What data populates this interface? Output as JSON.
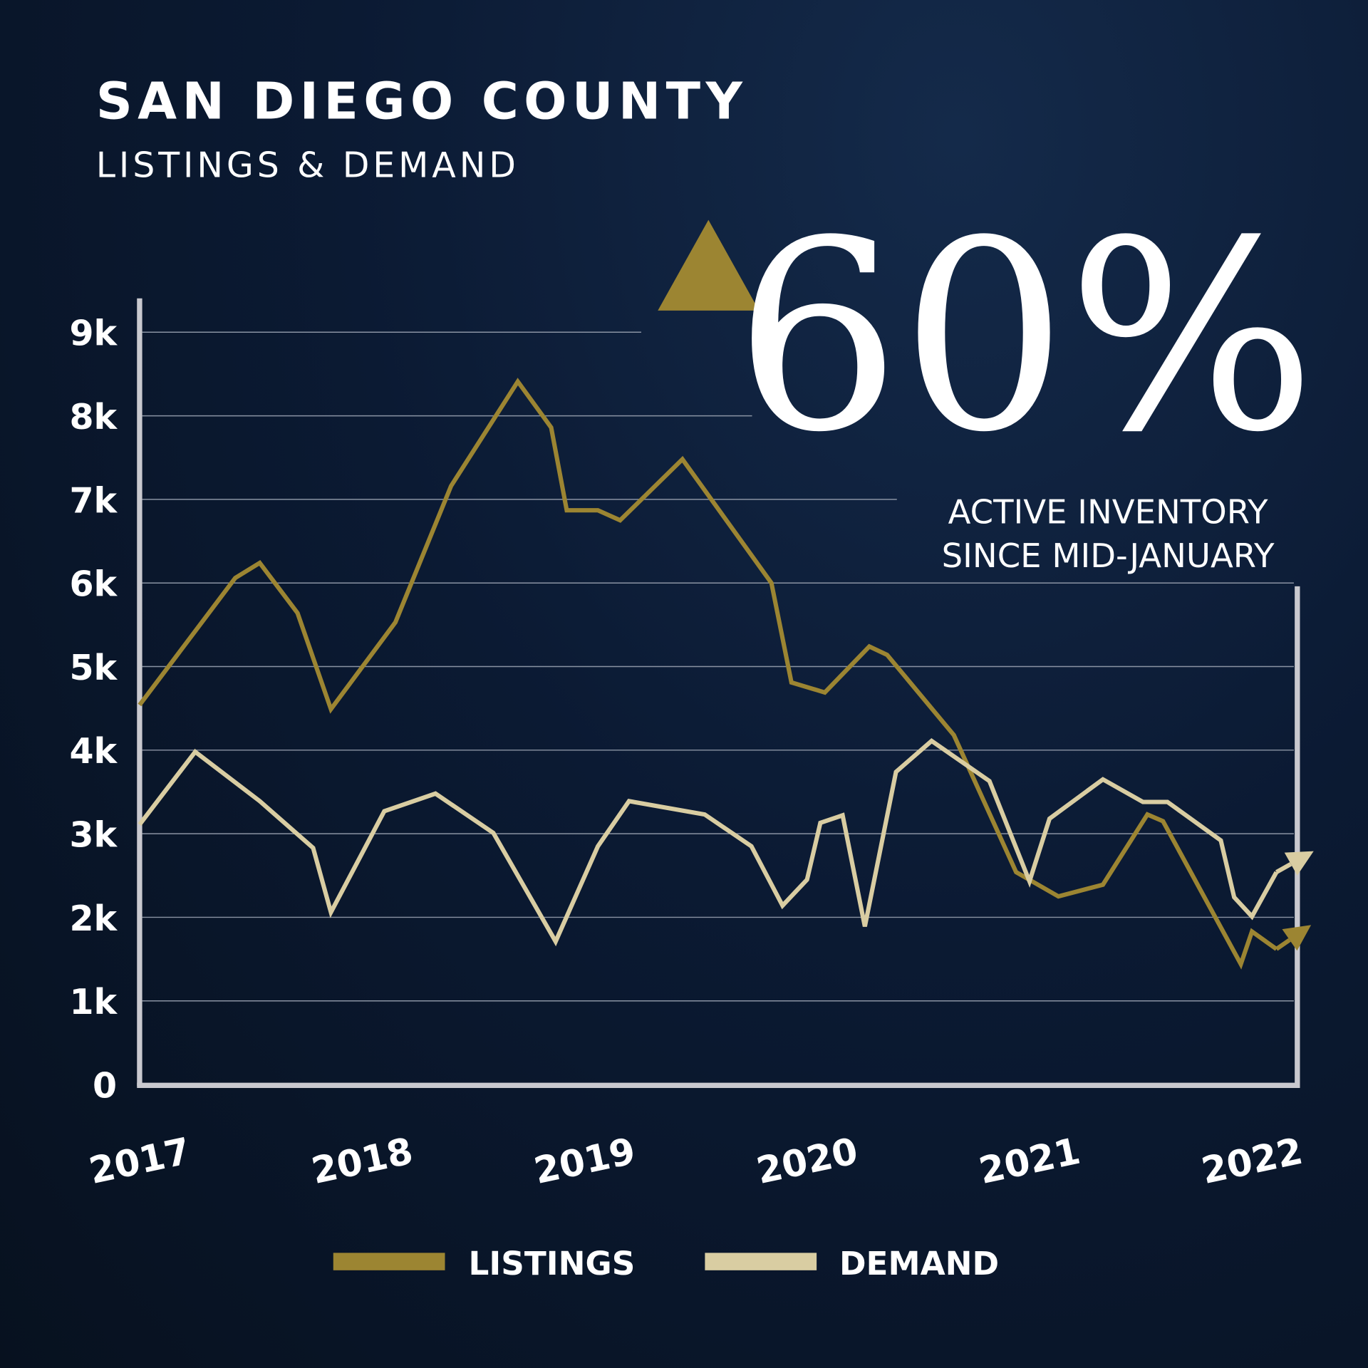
{
  "colors": {
    "listings": "#9c8532",
    "demand": "#d9cda2",
    "axis": "#c9c9cf",
    "grid": "#8a93a3",
    "background": "#0b1a33",
    "text": "#ffffff"
  },
  "chart_data": {
    "type": "line",
    "title": "SAN DIEGO COUNTY",
    "subtitle": "LISTINGS & DEMAND",
    "xlabel": "",
    "ylabel": "",
    "x_ticks": [
      "2017",
      "2018",
      "2019",
      "2020",
      "2021",
      "2022"
    ],
    "y_ticks": [
      "0",
      "1k",
      "2k",
      "3k",
      "4k",
      "5k",
      "6k",
      "7k",
      "8k",
      "9k"
    ],
    "ylim": [
      0,
      9000
    ],
    "xlim": [
      2017,
      2022.2
    ],
    "grid": true,
    "legend_position": "bottom",
    "series": [
      {
        "name": "LISTINGS",
        "x": [
          2017.0,
          2017.43,
          2017.54,
          2017.71,
          2017.86,
          2018.15,
          2018.4,
          2018.7,
          2018.85,
          2018.92,
          2019.06,
          2019.16,
          2019.44,
          2019.84,
          2019.93,
          2020.08,
          2020.28,
          2020.36,
          2020.66,
          2020.94,
          2021.13,
          2021.33,
          2021.53,
          2021.6,
          2021.95,
          2022.0,
          2022.11,
          2022.24
        ],
        "y": [
          4540,
          6060,
          6240,
          5640,
          4490,
          5530,
          7160,
          8410,
          7860,
          6870,
          6870,
          6750,
          7480,
          6000,
          4810,
          4690,
          5240,
          5140,
          4180,
          2540,
          2250,
          2390,
          3230,
          3150,
          1440,
          1830,
          1620,
          1860
        ]
      },
      {
        "name": "DEMAND",
        "x": [
          2017.0,
          2017.25,
          2017.54,
          2017.78,
          2017.86,
          2018.1,
          2018.33,
          2018.59,
          2018.87,
          2019.06,
          2019.2,
          2019.54,
          2019.75,
          2019.89,
          2020.0,
          2020.06,
          2020.16,
          2020.26,
          2020.4,
          2020.56,
          2020.82,
          2021.0,
          2021.09,
          2021.33,
          2021.51,
          2021.62,
          2021.86,
          2021.92,
          2022.0,
          2022.11,
          2022.25
        ],
        "y": [
          3110,
          3980,
          3390,
          2830,
          2060,
          3270,
          3480,
          3010,
          1710,
          2850,
          3390,
          3230,
          2850,
          2140,
          2450,
          3130,
          3220,
          1890,
          3740,
          4110,
          3630,
          2430,
          3180,
          3650,
          3380,
          3380,
          2920,
          2240,
          2010,
          2540,
          2750
        ]
      }
    ],
    "annotation": {
      "arrow": "up-triangle",
      "value": "60%",
      "line1": "ACTIVE INVENTORY",
      "line2": "SINCE MID-JANUARY"
    }
  }
}
